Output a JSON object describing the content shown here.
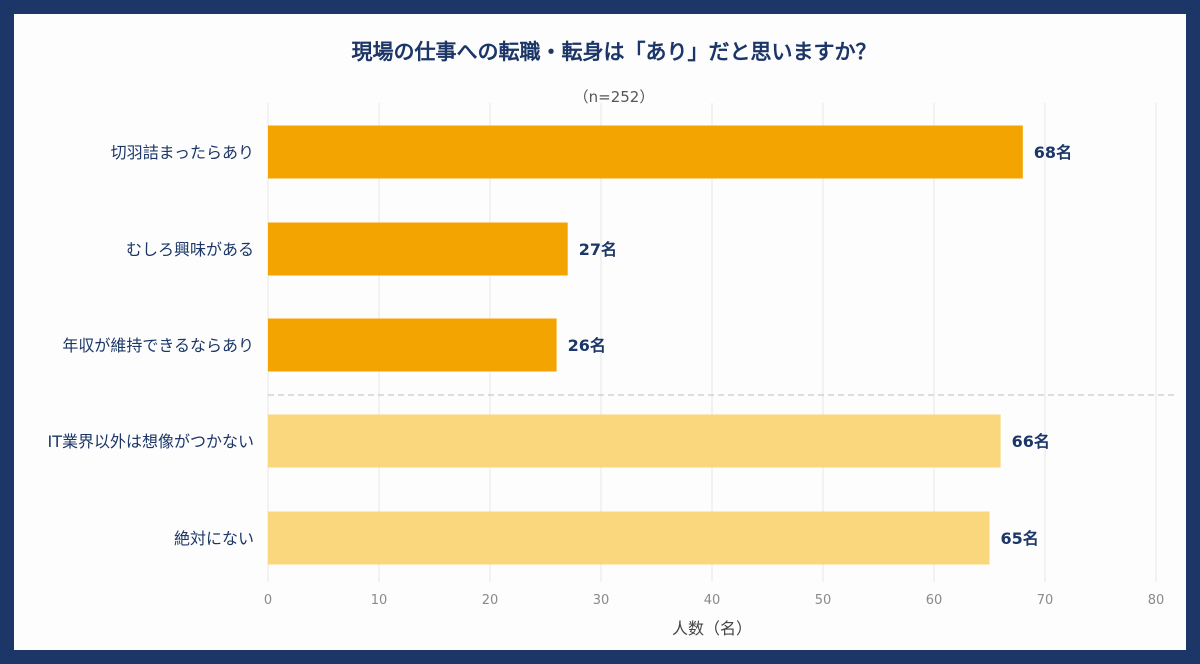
{
  "chart_data": {
    "type": "bar",
    "orientation": "horizontal",
    "title": "現場の仕事への転職・転身は「あり」だと思いますか？",
    "subtitle": "（n=252）",
    "xlabel": "人数（名）",
    "ylabel": "",
    "xlim": [
      0,
      80
    ],
    "xticks": [
      "0",
      "10",
      "20",
      "30",
      "40",
      "50",
      "60",
      "70",
      "80"
    ],
    "grid": "vertical",
    "categories": [
      "切羽詰まったらあり",
      "むしろ興味がある",
      "年収が維持できるならあり",
      "IT業界以外は想像がつかない",
      "絶対にない"
    ],
    "values": [
      68,
      27,
      26,
      66,
      65
    ],
    "value_labels": [
      "68名",
      "27名",
      "26名",
      "66名",
      "65名"
    ],
    "colors": [
      "#f4a400",
      "#f4a400",
      "#f4a400",
      "#fad77c",
      "#fad77c"
    ],
    "separator_after_index": 2
  }
}
